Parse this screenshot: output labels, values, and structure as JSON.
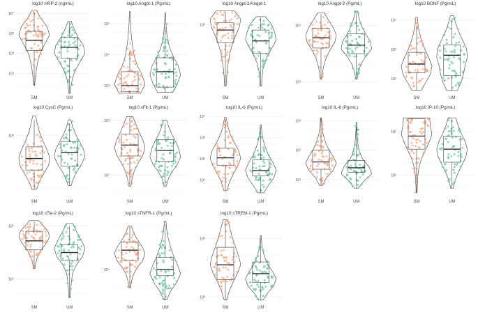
{
  "figure": {
    "description_free": true
  },
  "colors": {
    "SM": "#f4a582",
    "UM": "#66c2a5"
  },
  "groups": [
    "SM",
    "UM"
  ],
  "chart_data": [
    {
      "type": "violin",
      "title": "log10 HRP-2 (ng/mL)",
      "scale": "log10",
      "ylim_log": [
        0.0,
        4.25
      ],
      "yticks": [
        {
          "v": 1,
          "label": "10¹"
        },
        {
          "v": 2,
          "label": "10²"
        },
        {
          "v": 3,
          "label": "10³"
        },
        {
          "v": 4,
          "label": "10⁴"
        }
      ],
      "series": [
        {
          "name": "SM",
          "q1": 2.15,
          "median": 2.65,
          "q3": 3.1,
          "wlo": 0.4,
          "whi": 4.05,
          "vmin": 0.4,
          "vmax": 4.15,
          "widths": [
            0.03,
            0.08,
            0.15,
            0.25,
            0.42,
            0.7,
            1.0,
            0.85,
            0.45,
            0.15
          ]
        },
        {
          "name": "UM",
          "q1": 1.75,
          "median": 2.3,
          "q3": 2.8,
          "wlo": 0.0,
          "whi": 3.55,
          "vmin": 0.0,
          "vmax": 3.6,
          "widths": [
            0.05,
            0.1,
            0.2,
            0.4,
            0.7,
            1.0,
            0.9,
            0.55,
            0.3,
            0.1
          ]
        }
      ]
    },
    {
      "type": "violin",
      "title": "log10 Angpt-1 (Pg/mL)",
      "scale": "log10",
      "ylim_log": [
        2.75,
        5.5
      ],
      "yticks": [
        {
          "v": 3,
          "label": "10³"
        },
        {
          "v": 4,
          "label": "10⁴"
        },
        {
          "v": 5,
          "label": "10⁵"
        }
      ],
      "series": [
        {
          "name": "SM",
          "q1": 2.8,
          "median": 3.0,
          "q3": 3.45,
          "wlo": 2.75,
          "whi": 4.1,
          "vmin": 2.75,
          "vmax": 5.4,
          "widths": [
            0.7,
            1.0,
            0.8,
            0.5,
            0.3,
            0.2,
            0.12,
            0.07,
            0.04,
            0.02
          ]
        },
        {
          "name": "UM",
          "q1": 2.95,
          "median": 3.45,
          "q3": 3.9,
          "wlo": 2.78,
          "whi": 4.9,
          "vmin": 2.78,
          "vmax": 5.35,
          "widths": [
            0.5,
            0.8,
            1.0,
            0.85,
            0.55,
            0.3,
            0.15,
            0.08,
            0.04,
            0.02
          ]
        }
      ]
    },
    {
      "type": "violin",
      "title": "log10 Angpt-2/Angpt-1",
      "scale": "log10",
      "ylim_log": [
        -0.9,
        1.45
      ],
      "yticks": [
        {
          "v": 1,
          "label": "10¹"
        }
      ],
      "series": [
        {
          "name": "SM",
          "q1": 0.5,
          "median": 0.85,
          "q3": 1.05,
          "wlo": -0.7,
          "whi": 1.35,
          "vmin": -0.7,
          "vmax": 1.38,
          "widths": [
            0.05,
            0.08,
            0.12,
            0.2,
            0.3,
            0.45,
            0.65,
            0.9,
            1.0,
            0.6
          ]
        },
        {
          "name": "UM",
          "q1": 0.2,
          "median": 0.55,
          "q3": 0.85,
          "wlo": -0.7,
          "whi": 1.2,
          "vmin": -0.7,
          "vmax": 1.22,
          "widths": [
            0.05,
            0.08,
            0.12,
            0.25,
            0.45,
            0.75,
            1.0,
            0.9,
            0.7,
            0.3
          ]
        }
      ]
    },
    {
      "type": "violin",
      "title": "log10 Angpt-2 (Pg/mL)",
      "scale": "log10",
      "ylim_log": [
        2.8,
        4.3
      ],
      "yticks": [
        {
          "v": 3,
          "label": "10³"
        },
        {
          "v": 4,
          "label": "10⁴"
        }
      ],
      "series": [
        {
          "name": "SM",
          "q1": 3.6,
          "median": 3.78,
          "q3": 3.95,
          "wlo": 3.05,
          "whi": 4.2,
          "vmin": 3.05,
          "vmax": 4.22,
          "widths": [
            0.05,
            0.1,
            0.2,
            0.35,
            0.6,
            0.9,
            1.0,
            0.8,
            0.5,
            0.2
          ]
        },
        {
          "name": "UM",
          "q1": 3.5,
          "median": 3.65,
          "q3": 3.85,
          "wlo": 3.05,
          "whi": 4.2,
          "vmin": 3.05,
          "vmax": 4.25,
          "widths": [
            0.05,
            0.12,
            0.3,
            0.6,
            1.0,
            0.9,
            0.6,
            0.35,
            0.18,
            0.08
          ]
        }
      ]
    },
    {
      "type": "violin",
      "title": "log10 BDNF (Pg/mL)",
      "scale": "log10",
      "ylim_log": [
        1.5,
        4.4
      ],
      "yticks": [
        {
          "v": 2,
          "label": "10²"
        },
        {
          "v": 3,
          "label": "10³"
        },
        {
          "v": 4,
          "label": "10⁴"
        }
      ],
      "series": [
        {
          "name": "SM",
          "q1": 2.2,
          "median": 2.5,
          "q3": 2.9,
          "wlo": 1.6,
          "whi": 3.8,
          "vmin": 1.6,
          "vmax": 4.1,
          "widths": [
            0.3,
            0.6,
            0.9,
            1.0,
            0.8,
            0.55,
            0.35,
            0.2,
            0.1,
            0.05
          ]
        },
        {
          "name": "UM",
          "q1": 2.1,
          "median": 2.8,
          "q3": 3.15,
          "wlo": 1.6,
          "whi": 4.0,
          "vmin": 1.6,
          "vmax": 4.15,
          "widths": [
            0.35,
            0.6,
            0.75,
            0.85,
            1.0,
            0.95,
            0.7,
            0.45,
            0.25,
            0.1
          ]
        }
      ]
    },
    {
      "type": "violin",
      "title": "log10 CysC (Pg/mL)",
      "scale": "log10",
      "ylim_log": [
        5.2,
        6.3
      ],
      "yticks": [
        {
          "v": 6,
          "label": "10⁶"
        }
      ],
      "series": [
        {
          "name": "SM",
          "q1": 5.55,
          "median": 5.7,
          "q3": 5.85,
          "wlo": 5.3,
          "whi": 6.2,
          "vmin": 5.3,
          "vmax": 6.25,
          "widths": [
            0.15,
            0.35,
            0.65,
            0.95,
            1.0,
            0.8,
            0.55,
            0.35,
            0.2,
            0.1
          ]
        },
        {
          "name": "UM",
          "q1": 5.6,
          "median": 5.78,
          "q3": 5.92,
          "wlo": 5.35,
          "whi": 6.15,
          "vmin": 5.35,
          "vmax": 6.2,
          "widths": [
            0.1,
            0.25,
            0.5,
            0.8,
            1.0,
            0.9,
            0.65,
            0.4,
            0.2,
            0.08
          ]
        }
      ]
    },
    {
      "type": "violin",
      "title": "log10 sFlt-1 (Pg/mL)",
      "scale": "log10",
      "ylim_log": [
        1.6,
        3.15
      ],
      "yticks": [
        {
          "v": 2,
          "label": "10²"
        },
        {
          "v": 3,
          "label": "10³"
        }
      ],
      "series": [
        {
          "name": "SM",
          "q1": 2.35,
          "median": 2.55,
          "q3": 2.75,
          "wlo": 1.8,
          "whi": 3.05,
          "vmin": 1.8,
          "vmax": 3.07,
          "widths": [
            0.08,
            0.15,
            0.3,
            0.55,
            0.85,
            1.0,
            0.85,
            0.6,
            0.4,
            0.2
          ]
        },
        {
          "name": "UM",
          "q1": 2.25,
          "median": 2.45,
          "q3": 2.65,
          "wlo": 1.8,
          "whi": 2.95,
          "vmin": 1.8,
          "vmax": 3.0,
          "widths": [
            0.08,
            0.2,
            0.45,
            0.8,
            1.0,
            0.9,
            0.7,
            0.45,
            0.25,
            0.1
          ]
        }
      ]
    },
    {
      "type": "violin",
      "title": "log10 IL-6 (Pg/mL)",
      "scale": "log10",
      "ylim_log": [
        0.2,
        4.2
      ],
      "yticks": [
        {
          "v": 1,
          "label": "10¹"
        },
        {
          "v": 2,
          "label": "10²"
        },
        {
          "v": 3,
          "label": "10³"
        },
        {
          "v": 4,
          "label": "10⁴"
        }
      ],
      "series": [
        {
          "name": "SM",
          "q1": 1.7,
          "median": 2.05,
          "q3": 2.5,
          "wlo": 0.5,
          "whi": 3.9,
          "vmin": 0.5,
          "vmax": 3.95,
          "widths": [
            0.1,
            0.25,
            0.5,
            0.8,
            1.0,
            0.85,
            0.55,
            0.3,
            0.15,
            0.05
          ]
        },
        {
          "name": "UM",
          "q1": 1.2,
          "median": 1.45,
          "q3": 1.95,
          "wlo": 0.4,
          "whi": 3.5,
          "vmin": 0.4,
          "vmax": 3.6,
          "widths": [
            0.2,
            0.5,
            0.85,
            1.0,
            0.8,
            0.5,
            0.3,
            0.15,
            0.08,
            0.03
          ]
        }
      ]
    },
    {
      "type": "violin",
      "title": "log10 IL-8 (Pg/mL)",
      "scale": "log10",
      "ylim_log": [
        0.4,
        3.3
      ],
      "yticks": [
        {
          "v": 1,
          "label": "10¹"
        },
        {
          "v": 2,
          "label": "10²"
        },
        {
          "v": 3,
          "label": "10³"
        }
      ],
      "series": [
        {
          "name": "SM",
          "q1": 1.35,
          "median": 1.6,
          "q3": 2.0,
          "wlo": 0.8,
          "whi": 3.1,
          "vmin": 0.8,
          "vmax": 3.1,
          "widths": [
            0.1,
            0.35,
            0.8,
            1.0,
            0.75,
            0.45,
            0.25,
            0.12,
            0.06,
            0.03
          ]
        },
        {
          "name": "UM",
          "q1": 1.25,
          "median": 1.4,
          "q3": 1.65,
          "wlo": 0.7,
          "whi": 2.8,
          "vmin": 0.7,
          "vmax": 2.95,
          "widths": [
            0.12,
            0.5,
            1.0,
            0.8,
            0.4,
            0.2,
            0.1,
            0.06,
            0.03,
            0.02
          ]
        }
      ]
    },
    {
      "type": "violin",
      "title": "log10 IP-10 (Pg/mL)",
      "scale": "log10",
      "ylim_log": [
        1.5,
        3.45
      ],
      "yticks": [
        {
          "v": 2,
          "label": "10²"
        },
        {
          "v": 3,
          "label": "10³"
        }
      ],
      "series": [
        {
          "name": "SM",
          "q1": 2.6,
          "median": 2.9,
          "q3": 3.3,
          "wlo": 1.6,
          "whi": 3.3,
          "vmin": 1.6,
          "vmax": 3.32,
          "widths": [
            0.03,
            0.05,
            0.08,
            0.15,
            0.3,
            0.55,
            0.8,
            1.0,
            0.9,
            0.85
          ]
        },
        {
          "name": "UM",
          "q1": 2.3,
          "median": 2.6,
          "q3": 2.9,
          "wlo": 1.7,
          "whi": 3.3,
          "vmin": 1.7,
          "vmax": 3.32,
          "widths": [
            0.08,
            0.2,
            0.4,
            0.65,
            0.9,
            1.0,
            0.85,
            0.6,
            0.4,
            0.25
          ]
        }
      ]
    },
    {
      "type": "violin",
      "title": "log10 sTie-2 (Pg/mL)",
      "scale": "log10",
      "ylim_log": [
        3.55,
        5.15
      ],
      "yticks": [
        {
          "v": 4,
          "label": "10⁴"
        },
        {
          "v": 5,
          "label": "10⁵"
        }
      ],
      "series": [
        {
          "name": "SM",
          "q1": 4.55,
          "median": 4.72,
          "q3": 4.9,
          "wlo": 4.2,
          "whi": 5.08,
          "vmin": 4.2,
          "vmax": 5.1,
          "widths": [
            0.05,
            0.1,
            0.2,
            0.35,
            0.6,
            0.85,
            1.0,
            0.9,
            0.6,
            0.3
          ]
        },
        {
          "name": "UM",
          "q1": 4.35,
          "median": 4.5,
          "q3": 4.65,
          "wlo": 3.65,
          "whi": 5.0,
          "vmin": 3.65,
          "vmax": 5.05,
          "widths": [
            0.05,
            0.08,
            0.12,
            0.2,
            0.45,
            0.85,
            1.0,
            0.75,
            0.45,
            0.2
          ]
        }
      ]
    },
    {
      "type": "violin",
      "title": "log10 sTNFR-1 (Pg/mL)",
      "scale": "log10",
      "ylim_log": [
        3.45,
        4.85
      ],
      "yticks": [
        {
          "v": 4,
          "label": "10⁴"
        }
      ],
      "series": [
        {
          "name": "SM",
          "q1": 4.15,
          "median": 4.32,
          "q3": 4.45,
          "wlo": 3.7,
          "whi": 4.7,
          "vmin": 3.7,
          "vmax": 4.72,
          "widths": [
            0.05,
            0.12,
            0.25,
            0.5,
            0.85,
            1.0,
            0.8,
            0.5,
            0.25,
            0.1
          ]
        },
        {
          "name": "UM",
          "q1": 3.9,
          "median": 4.0,
          "q3": 4.2,
          "wlo": 3.5,
          "whi": 4.75,
          "vmin": 3.5,
          "vmax": 4.8,
          "widths": [
            0.1,
            0.35,
            0.75,
            1.0,
            0.8,
            0.55,
            0.35,
            0.2,
            0.1,
            0.05
          ]
        }
      ]
    },
    {
      "type": "violin",
      "title": "log10 sTREM-1 (Pg/mL)",
      "scale": "log10",
      "ylim_log": [
        1.9,
        3.35
      ],
      "yticks": [
        {
          "v": 2,
          "label": "10²"
        },
        {
          "v": 3,
          "label": "10³"
        }
      ],
      "series": [
        {
          "name": "SM",
          "q1": 2.3,
          "median": 2.55,
          "q3": 2.85,
          "wlo": 1.95,
          "whi": 3.3,
          "vmin": 1.95,
          "vmax": 3.32,
          "widths": [
            0.08,
            0.25,
            0.5,
            0.8,
            1.0,
            0.85,
            0.65,
            0.45,
            0.3,
            0.15
          ]
        },
        {
          "name": "UM",
          "q1": 2.25,
          "median": 2.4,
          "q3": 2.6,
          "wlo": 1.95,
          "whi": 3.0,
          "vmin": 1.95,
          "vmax": 3.05,
          "widths": [
            0.15,
            0.45,
            0.85,
            1.0,
            0.75,
            0.45,
            0.25,
            0.12,
            0.06,
            0.03
          ]
        }
      ]
    }
  ]
}
